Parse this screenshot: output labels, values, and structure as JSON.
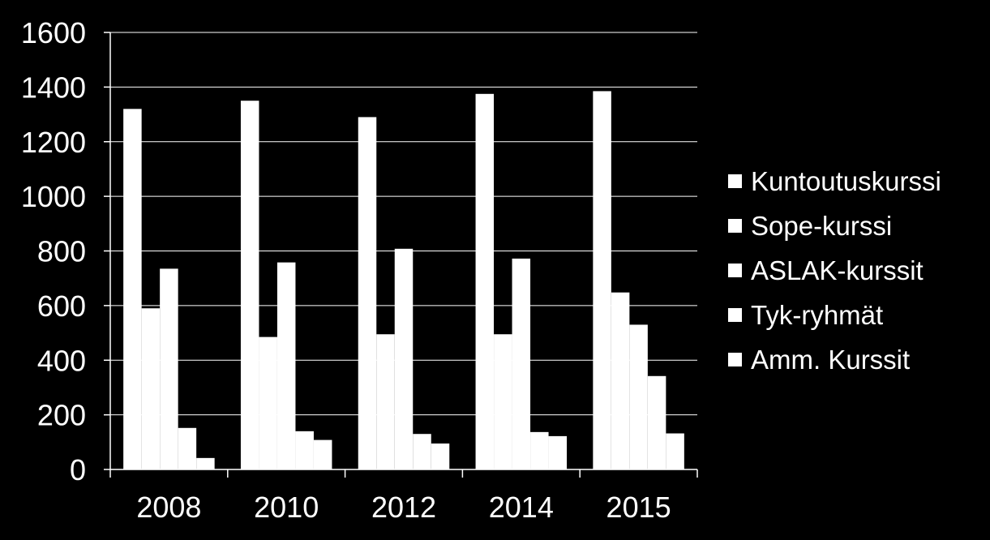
{
  "chart_data": {
    "type": "bar",
    "categories": [
      "2008",
      "2010",
      "2012",
      "2014",
      "2015"
    ],
    "series": [
      {
        "name": "Kuntoutuskurssi",
        "values": [
          1320,
          1350,
          1290,
          1375,
          1385
        ]
      },
      {
        "name": "Sope-kurssi",
        "values": [
          590,
          485,
          495,
          495,
          648
        ]
      },
      {
        "name": "ASLAK-kurssit",
        "values": [
          735,
          758,
          808,
          772,
          530
        ]
      },
      {
        "name": "Tyk-ryhmät",
        "values": [
          152,
          140,
          130,
          137,
          342
        ]
      },
      {
        "name": "Amm. Kurssit",
        "values": [
          42,
          108,
          95,
          122,
          132
        ]
      }
    ],
    "ylim": [
      0,
      1600
    ],
    "yticks": [
      "0",
      "200",
      "400",
      "600",
      "800",
      "1000",
      "1200",
      "1400",
      "1600"
    ],
    "grid": true,
    "legend_position": "right",
    "colors": {
      "background": "#000000",
      "bars": "#ffffff",
      "grid": "#ffffff",
      "text": "#ffffff"
    }
  }
}
